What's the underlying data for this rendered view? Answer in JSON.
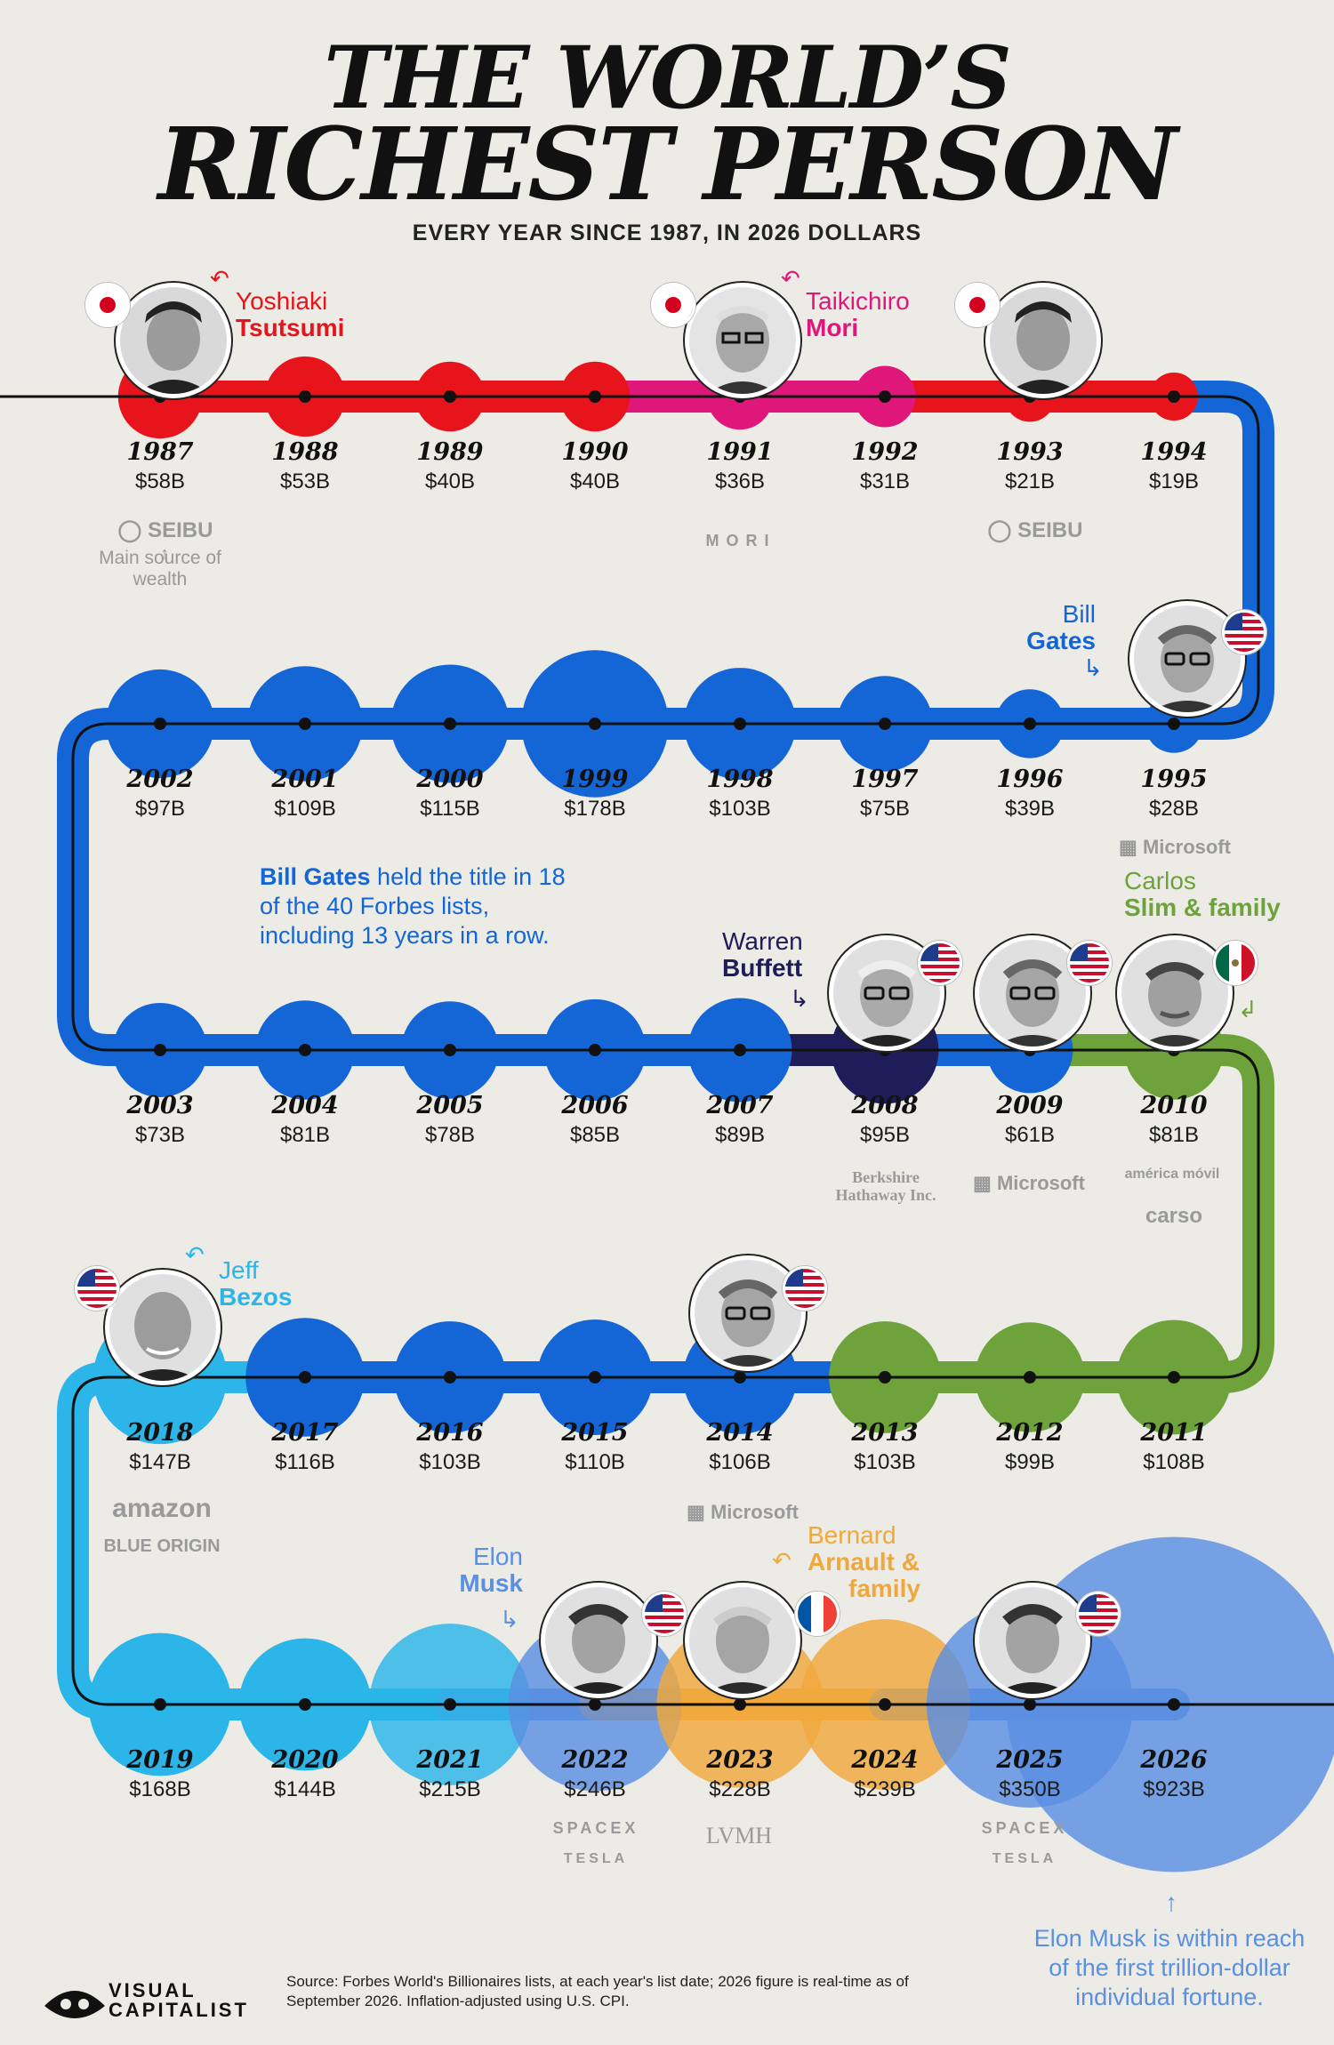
{
  "title_line1": "THE WORLD’S",
  "title_line2": "RICHEST PERSON",
  "subtitle": "EVERY YEAR SINCE 1987, IN 2026 DOLLARS",
  "people": {
    "tsutsumi": {
      "first": "Yoshiaki",
      "last": "Tsutsumi",
      "color": "#e8141b"
    },
    "mori": {
      "first": "Taikichiro",
      "last": "Mori",
      "color": "#e0177a"
    },
    "gates": {
      "first": "Bill",
      "last": "Gates",
      "color": "#1466d6"
    },
    "buffett": {
      "first": "Warren",
      "last": "Buffett",
      "color": "#1e1d5a"
    },
    "slim": {
      "first": "Carlos",
      "last": "Slim & family",
      "color": "#6ea23b"
    },
    "bezos": {
      "first": "Jeff",
      "last": "Bezos",
      "color": "#2bb5e8"
    },
    "musk": {
      "first": "Elon",
      "last": "Musk",
      "color": "#5a8fe2"
    },
    "arnault": {
      "first": "Bernard",
      "last": "Arnault &",
      "last2": "family",
      "color": "#f0a83d"
    }
  },
  "chart_data": {
    "type": "timeline",
    "unit": "billion USD (2026 dollars)",
    "entries": [
      {
        "year": "1987",
        "label": "$58B",
        "value": 58,
        "person": "tsutsumi"
      },
      {
        "year": "1988",
        "label": "$53B",
        "value": 53,
        "person": "tsutsumi"
      },
      {
        "year": "1989",
        "label": "$40B",
        "value": 40,
        "person": "tsutsumi"
      },
      {
        "year": "1990",
        "label": "$40B",
        "value": 40,
        "person": "tsutsumi"
      },
      {
        "year": "1991",
        "label": "$36B",
        "value": 36,
        "person": "mori"
      },
      {
        "year": "1992",
        "label": "$31B",
        "value": 31,
        "person": "mori"
      },
      {
        "year": "1993",
        "label": "$21B",
        "value": 21,
        "person": "tsutsumi"
      },
      {
        "year": "1994",
        "label": "$19B",
        "value": 19,
        "person": "tsutsumi"
      },
      {
        "year": "1995",
        "label": "$28B",
        "value": 28,
        "person": "gates"
      },
      {
        "year": "1996",
        "label": "$39B",
        "value": 39,
        "person": "gates"
      },
      {
        "year": "1997",
        "label": "$75B",
        "value": 75,
        "person": "gates"
      },
      {
        "year": "1998",
        "label": "$103B",
        "value": 103,
        "person": "gates"
      },
      {
        "year": "1999",
        "label": "$178B",
        "value": 178,
        "person": "gates"
      },
      {
        "year": "2000",
        "label": "$115B",
        "value": 115,
        "person": "gates"
      },
      {
        "year": "2001",
        "label": "$109B",
        "value": 109,
        "person": "gates"
      },
      {
        "year": "2002",
        "label": "$97B",
        "value": 97,
        "person": "gates"
      },
      {
        "year": "2003",
        "label": "$73B",
        "value": 73,
        "person": "gates"
      },
      {
        "year": "2004",
        "label": "$81B",
        "value": 81,
        "person": "gates"
      },
      {
        "year": "2005",
        "label": "$78B",
        "value": 78,
        "person": "gates"
      },
      {
        "year": "2006",
        "label": "$85B",
        "value": 85,
        "person": "gates"
      },
      {
        "year": "2007",
        "label": "$89B",
        "value": 89,
        "person": "gates"
      },
      {
        "year": "2008",
        "label": "$95B",
        "value": 95,
        "person": "buffett"
      },
      {
        "year": "2009",
        "label": "$61B",
        "value": 61,
        "person": "gates"
      },
      {
        "year": "2010",
        "label": "$81B",
        "value": 81,
        "person": "slim"
      },
      {
        "year": "2011",
        "label": "$108B",
        "value": 108,
        "person": "slim"
      },
      {
        "year": "2012",
        "label": "$99B",
        "value": 99,
        "person": "slim"
      },
      {
        "year": "2013",
        "label": "$103B",
        "value": 103,
        "person": "slim"
      },
      {
        "year": "2014",
        "label": "$106B",
        "value": 106,
        "person": "gates"
      },
      {
        "year": "2015",
        "label": "$110B",
        "value": 110,
        "person": "gates"
      },
      {
        "year": "2016",
        "label": "$103B",
        "value": 103,
        "person": "gates"
      },
      {
        "year": "2017",
        "label": "$116B",
        "value": 116,
        "person": "gates"
      },
      {
        "year": "2018",
        "label": "$147B",
        "value": 147,
        "person": "bezos"
      },
      {
        "year": "2019",
        "label": "$168B",
        "value": 168,
        "person": "bezos"
      },
      {
        "year": "2020",
        "label": "$144B",
        "value": 144,
        "person": "bezos"
      },
      {
        "year": "2021",
        "label": "$215B",
        "value": 215,
        "person": "bezos"
      },
      {
        "year": "2022",
        "label": "$246B",
        "value": 246,
        "person": "musk"
      },
      {
        "year": "2023",
        "label": "$228B",
        "value": 228,
        "person": "arnault"
      },
      {
        "year": "2024",
        "label": "$239B",
        "value": 239,
        "person": "arnault"
      },
      {
        "year": "2025",
        "label": "$350B",
        "value": 350,
        "person": "musk"
      },
      {
        "year": "2026",
        "label": "$923B",
        "value": 923,
        "person": "musk"
      }
    ]
  },
  "sources": {
    "seibu": "SEIBU",
    "main_source_label": "Main source of wealth",
    "mori_logo": "MORI",
    "microsoft": "Microsoft",
    "berkshire_1": "Berkshire",
    "berkshire_2": "Hathaway Inc.",
    "america_movil": "américa móvil",
    "grupo_carso": "carso",
    "amazon": "amazon",
    "blue_origin": "BLUE ORIGIN",
    "spacex": "SPACEX",
    "tesla": "TESLA",
    "lvmh": "LVMH"
  },
  "gates_note": {
    "bold": "Bill Gates",
    "rest": " held the title in 18 of the 40 Forbes lists, including 13 years in a row."
  },
  "musk_note": "Elon Musk is within reach of the first trillion-dollar individual fortune.",
  "source_note": "Source: Forbes World's Billionaires lists, at each year's list date; 2026 figure is real-time as of September 2026. Inflation-adjusted using U.S. CPI.",
  "brand": {
    "line1": "VISUAL",
    "line2": "CAPITALIST"
  }
}
